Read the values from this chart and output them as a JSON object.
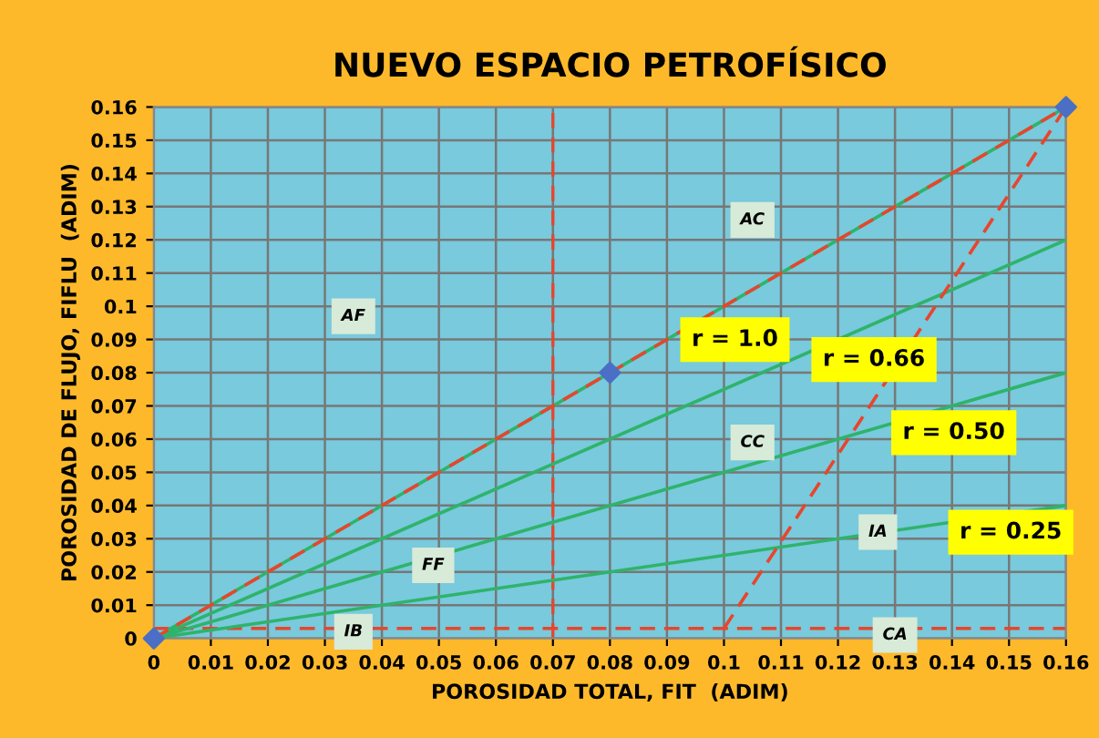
{
  "chart_data": {
    "type": "line",
    "title": "NUEVO ESPACIO PETROFÍSICO",
    "xlabel": "POROSIDAD TOTAL, FIT  (ADIM)",
    "ylabel": "POROSIDAD DE FLUJO, FIFLU  (ADIM)",
    "series": [
      {
        "color": "#2fb36b",
        "x": [
          0,
          0.16
        ],
        "values": [
          0,
          0.16
        ],
        "line_style": "solid"
      },
      {
        "color": "#2fb36b",
        "x": [
          0,
          0.16
        ],
        "values": [
          0,
          0.12
        ],
        "line_style": "solid"
      },
      {
        "color": "#2fb36b",
        "x": [
          0,
          0.16
        ],
        "values": [
          0,
          0.08
        ],
        "line_style": "solid"
      },
      {
        "color": "#2fb36b",
        "x": [
          0,
          0.16
        ],
        "values": [
          0,
          0.04
        ],
        "line_style": "solid"
      },
      {
        "color": "#e8452c",
        "x": [
          0,
          0.08,
          0.16
        ],
        "values": [
          0,
          0.08,
          0.16
        ],
        "line_style": "dashed"
      },
      {
        "color": "#e8452c",
        "x": [
          0.1,
          0.16
        ],
        "values": [
          0.003,
          0.16
        ],
        "line_style": "dashed"
      },
      {
        "type": "scatter",
        "color": "#4a6fc4",
        "x": [
          0,
          0.08,
          0.16
        ],
        "values": [
          0,
          0.08,
          0.16
        ],
        "marker": "diamond"
      }
    ],
    "ref_lines": [
      {
        "axis": "y",
        "value": 0.003,
        "color": "#e8452c",
        "line_style": "dashed"
      },
      {
        "axis": "x",
        "value": 0.07,
        "color": "#e8452c",
        "line_style": "dashed"
      }
    ],
    "annotations": [
      {
        "text": "r = 1.0",
        "x": 0.093,
        "y": 0.093
      },
      {
        "text": "r = 0.66",
        "x": 0.116,
        "y": 0.087
      },
      {
        "text": "r = 0.50",
        "x": 0.13,
        "y": 0.065
      },
      {
        "text": "r = 0.25",
        "x": 0.14,
        "y": 0.035
      },
      {
        "text": "AC",
        "x": 0.105,
        "y": 0.126
      },
      {
        "text": "AF",
        "x": 0.035,
        "y": 0.097
      },
      {
        "text": "CC",
        "x": 0.105,
        "y": 0.059
      },
      {
        "text": "FF",
        "x": 0.049,
        "y": 0.022
      },
      {
        "text": "IA",
        "x": 0.127,
        "y": 0.032
      },
      {
        "text": "IB",
        "x": 0.035,
        "y": 0.002
      },
      {
        "text": "CA",
        "x": 0.13,
        "y": 0.001
      }
    ],
    "xlim": [
      0,
      0.16
    ],
    "ylim": [
      0,
      0.16
    ],
    "xticks": [
      0,
      0.01,
      0.02,
      0.03,
      0.04,
      0.05,
      0.06,
      0.07,
      0.08,
      0.09,
      0.1,
      0.11,
      0.12,
      0.13,
      0.14,
      0.15,
      0.16
    ],
    "yticks": [
      0,
      0.01,
      0.02,
      0.03,
      0.04,
      0.05,
      0.06,
      0.07,
      0.08,
      0.09,
      0.1,
      0.11,
      0.12,
      0.13,
      0.14,
      0.15,
      0.16
    ],
    "grid": true
  }
}
